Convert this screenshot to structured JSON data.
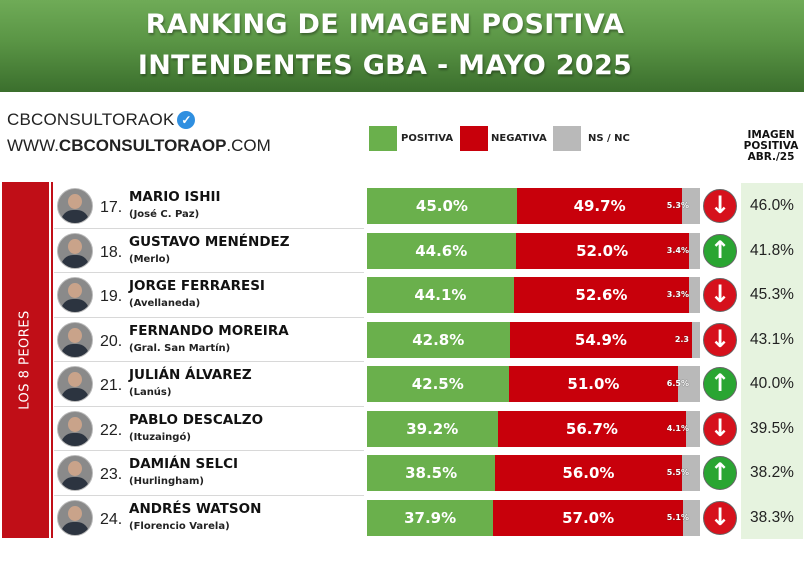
{
  "header": {
    "title_line1": "RANKING DE IMAGEN POSITIVA",
    "title_line2": "INTENDENTES GBA - MAYO 2025"
  },
  "brand": {
    "handle": "CBCONSULTORAOK",
    "website_prefix": "WWW.",
    "website_bold": "CBCONSULTORAOP",
    "website_suffix": ".COM"
  },
  "legend": {
    "positive": "POSITIVA",
    "negative": "NEGATIVA",
    "nsnc": "NS / NC"
  },
  "prev_header": {
    "line1": "IMAGEN",
    "line2": "POSITIVA",
    "line3": "ABR./25"
  },
  "group_label": "LOS 8 PEORES",
  "colors": {
    "positive": "#6ab04c",
    "negative": "#c8000b",
    "nsnc": "#b9b9b9",
    "arrow_down": "#d6111c",
    "arrow_up": "#2aa532"
  },
  "chart_data": {
    "type": "bar",
    "orientation": "horizontal-stacked",
    "title": "RANKING DE IMAGEN POSITIVA INTENDENTES GBA - MAYO 2025",
    "series_names": [
      "POSITIVA",
      "NEGATIVA",
      "NS / NC"
    ],
    "rows": [
      {
        "rank": "17.",
        "name": "MARIO ISHII",
        "place": "(José C. Paz)",
        "positive": 45.0,
        "negative": 49.7,
        "nsnc": 5.3,
        "positive_label": "45.0%",
        "negative_label": "49.7%",
        "nsnc_label": "5.3%",
        "trend": "down",
        "prev_label": "46.0%"
      },
      {
        "rank": "18.",
        "name": "GUSTAVO MENÉNDEZ",
        "place": "(Merlo)",
        "positive": 44.6,
        "negative": 52.0,
        "nsnc": 3.4,
        "positive_label": "44.6%",
        "negative_label": "52.0%",
        "nsnc_label": "3.4%",
        "trend": "up",
        "prev_label": "41.8%"
      },
      {
        "rank": "19.",
        "name": "JORGE FERRARESI",
        "place": "(Avellaneda)",
        "positive": 44.1,
        "negative": 52.6,
        "nsnc": 3.3,
        "positive_label": "44.1%",
        "negative_label": "52.6%",
        "nsnc_label": "3.3%",
        "trend": "down",
        "prev_label": "45.3%"
      },
      {
        "rank": "20.",
        "name": "FERNANDO MOREIRA",
        "place": "(Gral. San Martín)",
        "positive": 42.8,
        "negative": 54.9,
        "nsnc": 2.3,
        "positive_label": "42.8%",
        "negative_label": "54.9%",
        "nsnc_label": "2.3",
        "trend": "down",
        "prev_label": "43.1%"
      },
      {
        "rank": "21.",
        "name": "JULIÁN ÁLVAREZ",
        "place": "(Lanús)",
        "positive": 42.5,
        "negative": 51.0,
        "nsnc": 6.5,
        "positive_label": "42.5%",
        "negative_label": "51.0%",
        "nsnc_label": "6.5%",
        "trend": "up",
        "prev_label": "40.0%"
      },
      {
        "rank": "22.",
        "name": "PABLO DESCALZO",
        "place": "(Ituzaingó)",
        "positive": 39.2,
        "negative": 56.7,
        "nsnc": 4.1,
        "positive_label": "39.2%",
        "negative_label": "56.7%",
        "nsnc_label": "4.1%",
        "trend": "down",
        "prev_label": "39.5%"
      },
      {
        "rank": "23.",
        "name": "DAMIÁN SELCI",
        "place": "(Hurlingham)",
        "positive": 38.5,
        "negative": 56.0,
        "nsnc": 5.5,
        "positive_label": "38.5%",
        "negative_label": "56.0%",
        "nsnc_label": "5.5%",
        "trend": "up",
        "prev_label": "38.2%"
      },
      {
        "rank": "24.",
        "name": "ANDRÉS WATSON",
        "place": "(Florencio Varela)",
        "positive": 37.9,
        "negative": 57.0,
        "nsnc": 5.1,
        "positive_label": "37.9%",
        "negative_label": "57.0%",
        "nsnc_label": "5.1%",
        "trend": "down",
        "prev_label": "38.3%"
      }
    ]
  }
}
